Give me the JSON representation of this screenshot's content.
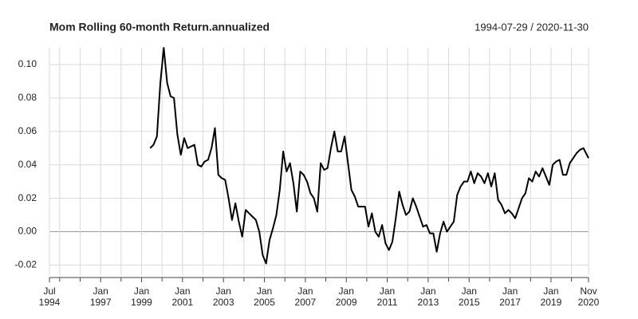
{
  "chart_data": {
    "type": "line",
    "title": "Mom Rolling 60-month Return.annualized",
    "subtitle": "1994-07-29 / 2020-11-30",
    "color": "#000000",
    "grid": true,
    "x": [
      "1999-06",
      "1999-08",
      "1999-10",
      "1999-12",
      "2000-02",
      "2000-04",
      "2000-06",
      "2000-08",
      "2000-10",
      "2000-12",
      "2001-02",
      "2001-04",
      "2001-06",
      "2001-08",
      "2001-10",
      "2001-12",
      "2002-02",
      "2002-04",
      "2002-06",
      "2002-08",
      "2002-10",
      "2002-12",
      "2003-02",
      "2003-04",
      "2003-06",
      "2003-08",
      "2003-10",
      "2003-12",
      "2004-02",
      "2004-04",
      "2004-06",
      "2004-08",
      "2004-10",
      "2004-12",
      "2005-02",
      "2005-04",
      "2005-06",
      "2005-08",
      "2005-10",
      "2005-12",
      "2006-02",
      "2006-04",
      "2006-06",
      "2006-08",
      "2006-10",
      "2006-12",
      "2007-02",
      "2007-04",
      "2007-06",
      "2007-08",
      "2007-10",
      "2007-12",
      "2008-02",
      "2008-04",
      "2008-06",
      "2008-08",
      "2008-10",
      "2008-12",
      "2009-02",
      "2009-04",
      "2009-06",
      "2009-08",
      "2009-10",
      "2009-12",
      "2010-02",
      "2010-04",
      "2010-06",
      "2010-08",
      "2010-10",
      "2010-12",
      "2011-02",
      "2011-04",
      "2011-06",
      "2011-08",
      "2011-10",
      "2011-12",
      "2012-02",
      "2012-04",
      "2012-06",
      "2012-08",
      "2012-10",
      "2012-12",
      "2013-02",
      "2013-04",
      "2013-06",
      "2013-08",
      "2013-10",
      "2013-12",
      "2014-02",
      "2014-04",
      "2014-06",
      "2014-08",
      "2014-10",
      "2014-12",
      "2015-02",
      "2015-04",
      "2015-06",
      "2015-08",
      "2015-10",
      "2015-12",
      "2016-02",
      "2016-04",
      "2016-06",
      "2016-08",
      "2016-10",
      "2016-12",
      "2017-02",
      "2017-04",
      "2017-06",
      "2017-08",
      "2017-10",
      "2017-12",
      "2018-02",
      "2018-04",
      "2018-06",
      "2018-08",
      "2018-10",
      "2018-12",
      "2019-02",
      "2019-04",
      "2019-06",
      "2019-08",
      "2019-10",
      "2019-12",
      "2020-02",
      "2020-04",
      "2020-06",
      "2020-08",
      "2020-10",
      "2020-11"
    ],
    "values": [
      0.05,
      0.052,
      0.057,
      0.089,
      0.11,
      0.089,
      0.081,
      0.08,
      0.058,
      0.046,
      0.056,
      0.05,
      0.051,
      0.052,
      0.04,
      0.039,
      0.042,
      0.043,
      0.05,
      0.062,
      0.034,
      0.032,
      0.031,
      0.02,
      0.007,
      0.017,
      0.006,
      -0.003,
      0.013,
      0.011,
      0.009,
      0.007,
      0.0,
      -0.014,
      -0.019,
      -0.005,
      0.002,
      0.01,
      0.025,
      0.048,
      0.036,
      0.041,
      0.029,
      0.012,
      0.036,
      0.034,
      0.03,
      0.023,
      0.02,
      0.012,
      0.041,
      0.037,
      0.038,
      0.05,
      0.06,
      0.048,
      0.048,
      0.057,
      0.041,
      0.025,
      0.021,
      0.015,
      0.015,
      0.015,
      0.003,
      0.011,
      0.0,
      -0.003,
      0.004,
      -0.007,
      -0.011,
      -0.006,
      0.008,
      0.024,
      0.016,
      0.01,
      0.012,
      0.02,
      0.015,
      0.009,
      0.003,
      0.004,
      -0.001,
      -0.001,
      -0.012,
      -0.001,
      0.006,
      0.0,
      0.003,
      0.006,
      0.022,
      0.027,
      0.03,
      0.03,
      0.036,
      0.029,
      0.035,
      0.033,
      0.029,
      0.035,
      0.027,
      0.035,
      0.019,
      0.016,
      0.011,
      0.013,
      0.011,
      0.008,
      0.014,
      0.02,
      0.023,
      0.032,
      0.03,
      0.036,
      0.033,
      0.038,
      0.033,
      0.028,
      0.04,
      0.042,
      0.043,
      0.034,
      0.034,
      0.041,
      0.044,
      0.047,
      0.049,
      0.05,
      0.046,
      0.044
    ],
    "xlim": [
      "1994-07",
      "2020-11"
    ],
    "xticks": [
      {
        "value": "1994-07",
        "label": "Jul\n1994"
      },
      {
        "value": "1997-01",
        "label": "Jan\n1997"
      },
      {
        "value": "1999-01",
        "label": "Jan\n1999"
      },
      {
        "value": "2001-01",
        "label": "Jan\n2001"
      },
      {
        "value": "2003-01",
        "label": "Jan\n2003"
      },
      {
        "value": "2005-01",
        "label": "Jan\n2005"
      },
      {
        "value": "2007-01",
        "label": "Jan\n2007"
      },
      {
        "value": "2009-01",
        "label": "Jan\n2009"
      },
      {
        "value": "2011-01",
        "label": "Jan\n2011"
      },
      {
        "value": "2013-01",
        "label": "Jan\n2013"
      },
      {
        "value": "2015-01",
        "label": "Jan\n2015"
      },
      {
        "value": "2017-01",
        "label": "Jan\n2017"
      },
      {
        "value": "2019-01",
        "label": "Jan\n2019"
      },
      {
        "value": "2020-11",
        "label": "Nov\n2020"
      }
    ],
    "xminorticks": [
      "1995-01",
      "1996-01",
      "1998-01",
      "2000-01",
      "2002-01",
      "2004-01",
      "2006-01",
      "2008-01",
      "2010-01",
      "2012-01",
      "2014-01",
      "2016-01",
      "2018-01",
      "2020-01"
    ],
    "ylim": [
      -0.026,
      0.11
    ],
    "yticks": [
      {
        "value": 0.1,
        "label": "0.10"
      },
      0.08,
      0.06,
      0.04,
      0.02,
      {
        "value": 0,
        "label": "0.00"
      },
      -0.02
    ]
  }
}
